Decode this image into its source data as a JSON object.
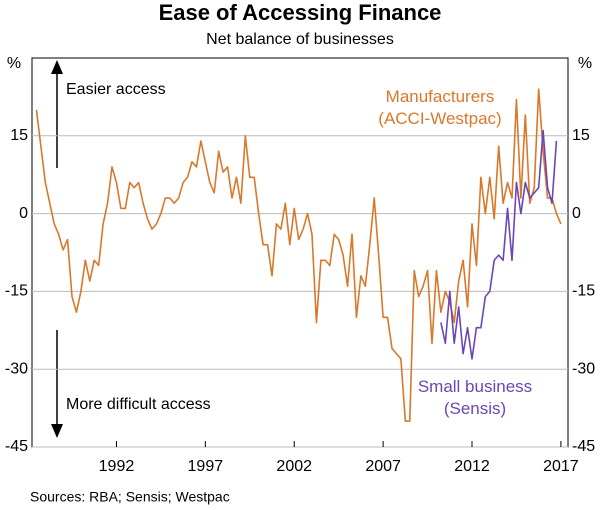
{
  "chart_data": {
    "type": "line",
    "title": "Ease of Accessing Finance",
    "subtitle": "Net balance of businesses",
    "y_label": "%",
    "y2_label": "%",
    "source": "Sources: RBA; Sensis; Westpac",
    "annotations": [
      "Easier access",
      "More difficult access"
    ],
    "x": [
      1988,
      1988.25,
      1988.5,
      1988.75,
      1989,
      1989.25,
      1989.5,
      1989.75,
      1990,
      1990.25,
      1990.5,
      1990.75,
      1991,
      1991.25,
      1991.5,
      1991.75,
      1992,
      1992.25,
      1992.5,
      1992.75,
      1993,
      1993.25,
      1993.5,
      1993.75,
      1994,
      1994.25,
      1994.5,
      1994.75,
      1995,
      1995.25,
      1995.5,
      1995.75,
      1996,
      1996.25,
      1996.5,
      1996.75,
      1997,
      1997.25,
      1997.5,
      1997.75,
      1998,
      1998.25,
      1998.5,
      1998.75,
      1999,
      1999.25,
      1999.5,
      1999.75,
      2000,
      2000.25,
      2000.5,
      2000.75,
      2001,
      2001.25,
      2001.5,
      2001.75,
      2002,
      2002.25,
      2002.5,
      2002.75,
      2003,
      2003.25,
      2003.5,
      2003.75,
      2004,
      2004.25,
      2004.5,
      2004.75,
      2005,
      2005.25,
      2005.5,
      2005.75,
      2006,
      2006.25,
      2006.5,
      2006.75,
      2007,
      2007.25,
      2007.5,
      2007.75,
      2008,
      2008.25,
      2008.5,
      2008.75,
      2009,
      2009.25,
      2009.5,
      2009.75,
      2010,
      2010.25,
      2010.5,
      2010.75,
      2011,
      2011.25,
      2011.5,
      2011.75,
      2012,
      2012.25,
      2012.5,
      2012.75,
      2013,
      2013.25,
      2013.5,
      2013.75,
      2014,
      2014.25,
      2014.5,
      2014.75,
      2015,
      2015.25,
      2015.5,
      2015.75,
      2016,
      2016.25,
      2016.5,
      2016.75,
      2017,
      2017.25,
      2017.5
    ],
    "series": [
      {
        "name": "Manufacturers (ACCI-Westpac)",
        "color": "#d9782b",
        "values": [
          20,
          13,
          6,
          2,
          -2,
          -4,
          -7,
          -5,
          -16,
          -19,
          -15,
          -9,
          -13,
          -9,
          -10,
          -2,
          2,
          9,
          6,
          1,
          1,
          6,
          5,
          6,
          2,
          -1,
          -3,
          -2,
          0,
          3,
          3,
          2,
          3,
          6,
          7,
          10,
          9,
          14,
          10,
          6,
          4,
          12,
          8,
          9,
          3,
          7,
          2,
          15,
          7,
          7,
          0,
          -6,
          -6,
          -12,
          -2,
          -3,
          2,
          -6,
          1,
          -5,
          -3,
          0,
          -4,
          -21,
          -9,
          -9,
          -10,
          -4,
          -5,
          -8,
          -14,
          -4,
          -20,
          -12,
          -14,
          -6,
          3,
          -8,
          -20,
          -20,
          -26,
          -27,
          -28,
          -40,
          -40,
          -11,
          -16,
          -14,
          -11,
          -25,
          -11,
          -19,
          -15,
          -17,
          -21,
          -13,
          -9,
          -18,
          -2,
          -10,
          7,
          0,
          7,
          -1,
          13,
          2,
          6,
          3,
          22,
          3,
          19,
          2,
          5,
          24,
          12,
          3,
          3,
          0,
          -2
        ]
      },
      {
        "name": "Small business (Sensis)",
        "color": "#6b46b5",
        "values": [
          null,
          null,
          null,
          null,
          null,
          null,
          null,
          null,
          null,
          null,
          null,
          null,
          null,
          null,
          null,
          null,
          null,
          null,
          null,
          null,
          null,
          null,
          null,
          null,
          null,
          null,
          null,
          null,
          null,
          null,
          null,
          null,
          null,
          null,
          null,
          null,
          null,
          null,
          null,
          null,
          null,
          null,
          null,
          null,
          null,
          null,
          null,
          null,
          null,
          null,
          null,
          null,
          null,
          null,
          null,
          null,
          null,
          null,
          null,
          null,
          null,
          null,
          null,
          null,
          null,
          null,
          null,
          null,
          null,
          null,
          null,
          null,
          null,
          null,
          null,
          null,
          null,
          null,
          null,
          null,
          null,
          null,
          null,
          null,
          null,
          null,
          null,
          null,
          null,
          null,
          null,
          -21,
          -25,
          -15,
          -25,
          -18,
          -27,
          -22,
          -28,
          -22,
          -22,
          -16,
          -15,
          -9,
          -8,
          -9,
          1,
          -9,
          6,
          0,
          6,
          3,
          4,
          5,
          16,
          5,
          2,
          14,
          null
        ]
      }
    ],
    "xlim": [
      1987.75,
      2017.9
    ],
    "ylim": [
      -45,
      30
    ],
    "yticks": [
      -45,
      -30,
      -15,
      0,
      15
    ],
    "xticks": [
      {
        "value": 1992.5,
        "label": "1992"
      },
      {
        "value": 1997.5,
        "label": "1997"
      },
      {
        "value": 2002.5,
        "label": "2002"
      },
      {
        "value": 2007.5,
        "label": "2007"
      },
      {
        "value": 2012.5,
        "label": "2012"
      },
      {
        "value": 2017.5,
        "label": "2017"
      }
    ],
    "grid": true
  }
}
